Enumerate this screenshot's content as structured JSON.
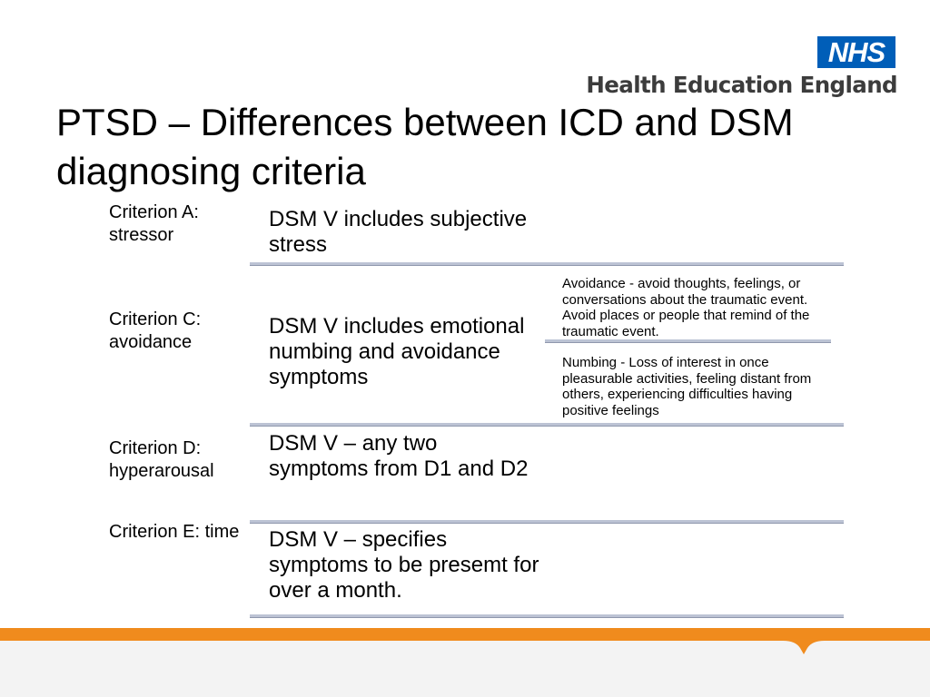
{
  "logo": {
    "nhs": "NHS",
    "org": "Health Education England"
  },
  "title": "PTSD – Differences between ICD and DSM diagnosing criteria",
  "rows": [
    {
      "criterion": "Criterion A: stressor",
      "description": "DSM V includes subjective stress"
    },
    {
      "criterion": "Criterion C: avoidance",
      "description": "DSM V includes emotional numbing and avoidance symptoms"
    },
    {
      "criterion": "Criterion D: hyperarousal",
      "description": "DSM V – any two symptoms from D1 and D2"
    },
    {
      "criterion": "Criterion E: time",
      "description": "DSM V – specifies symptoms to be presemt for over a month."
    }
  ],
  "sub_items": [
    "Avoidance - avoid thoughts, feelings, or conversations about the traumatic event. Avoid places or people that remind of the traumatic event.",
    "Numbing - Loss of interest in once pleasurable activities, feeling distant from others, experiencing difficulties having positive feelings"
  ],
  "colors": {
    "nhs_blue": "#005eb8",
    "accent_orange": "#f08b1d",
    "rule": "#bcc3d4"
  }
}
